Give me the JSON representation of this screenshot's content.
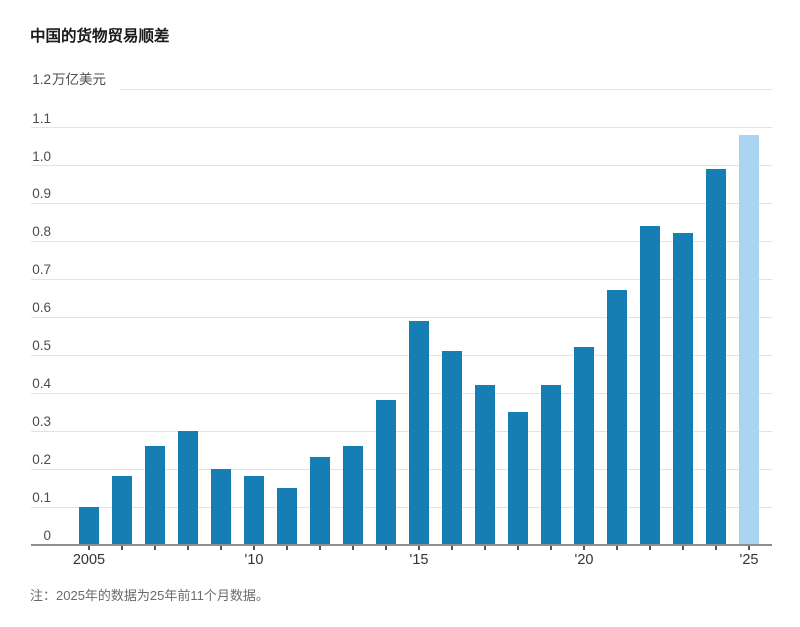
{
  "chart_data": {
    "type": "bar",
    "title": "中国的货物贸易顺差",
    "y_top_tick_label": "1.2",
    "unit_label": "万亿美元",
    "note": "注：2025年的数据为25年前11个月数据。",
    "categories": [
      2005,
      2006,
      2007,
      2008,
      2009,
      2010,
      2011,
      2012,
      2013,
      2014,
      2015,
      2016,
      2017,
      2018,
      2019,
      2020,
      2021,
      2022,
      2023,
      2024,
      2025
    ],
    "values": [
      0.1,
      0.18,
      0.26,
      0.3,
      0.2,
      0.18,
      0.15,
      0.23,
      0.26,
      0.38,
      0.59,
      0.51,
      0.42,
      0.35,
      0.42,
      0.52,
      0.67,
      0.84,
      0.82,
      0.99,
      1.08
    ],
    "highlight_index": 20,
    "ylim": [
      0,
      1.2
    ],
    "y_tick_step": 0.1,
    "grid": "horizontal",
    "legend": "none",
    "y_tick_labels": [
      {
        "value": 1.1,
        "label": "1.1"
      },
      {
        "value": 1.0,
        "label": "1.0"
      },
      {
        "value": 0.9,
        "label": "0.9"
      },
      {
        "value": 0.8,
        "label": "0.8"
      },
      {
        "value": 0.7,
        "label": "0.7"
      },
      {
        "value": 0.6,
        "label": "0.6"
      },
      {
        "value": 0.5,
        "label": "0.5"
      },
      {
        "value": 0.4,
        "label": "0.4"
      },
      {
        "value": 0.3,
        "label": "0.3"
      },
      {
        "value": 0.2,
        "label": "0.2"
      },
      {
        "value": 0.1,
        "label": "0.1"
      },
      {
        "value": 0.0,
        "label": "0"
      }
    ],
    "x_tick_labels": [
      {
        "index": 0,
        "label": "2005"
      },
      {
        "index": 5,
        "label": "'10"
      },
      {
        "index": 10,
        "label": "'15"
      },
      {
        "index": 15,
        "label": "'20"
      },
      {
        "index": 20,
        "label": "'25"
      }
    ],
    "colors": {
      "bar": "#177eb3",
      "bar_highlight": "#a9d5f0",
      "grid": "#e3e3e3",
      "axis": "#8d8d8d",
      "tick": "#555555"
    }
  }
}
